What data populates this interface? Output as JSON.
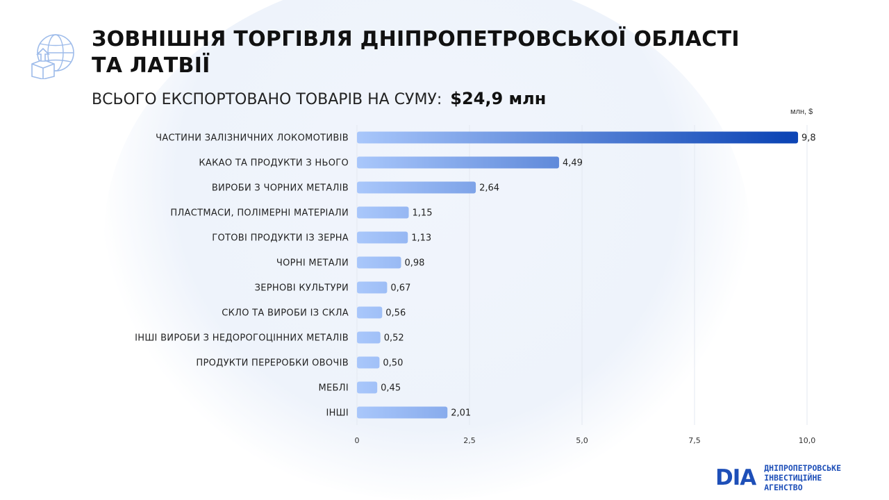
{
  "header": {
    "title": "ЗОВНІШНЯ ТОРГІВЛЯ ДНІПРОПЕТРОВСЬКОЇ ОБЛАСТІ ТА ЛАТВІЇ",
    "subtitle": "ВСЬОГО ЕКСПОРТОВАНО ТОВАРІВ НА СУМУ:",
    "total": "$24,9 млн",
    "icon": "globe-export-icon"
  },
  "colors": {
    "bar_light": "#a9c7fb",
    "bar_dark": "#0d45b5",
    "brand": "#1e4fb8",
    "grid": "#e3e8f0"
  },
  "chart_data": {
    "type": "bar",
    "orientation": "horizontal",
    "unit_label": "млн, $",
    "categories": [
      "ЧАСТИНИ ЗАЛІЗНИЧНИХ ЛОКОМОТИВІВ",
      "КАКАО ТА ПРОДУКТИ З НЬОГО",
      "ВИРОБИ З ЧОРНИХ МЕТАЛІВ",
      "ПЛАСТМАСИ, ПОЛІМЕРНІ МАТЕРІАЛИ",
      "ГОТОВІ ПРОДУКТИ ІЗ ЗЕРНА",
      "ЧОРНІ МЕТАЛИ",
      "ЗЕРНОВІ КУЛЬТУРИ",
      "СКЛО ТА ВИРОБИ ІЗ СКЛА",
      "ІНШІ ВИРОБИ З НЕДОРОГОЦІННИХ МЕТАЛІВ",
      "ПРОДУКТИ ПЕРЕРОБКИ ОВОЧІВ",
      "МЕБЛІ",
      "ІНШІ"
    ],
    "values": [
      9.8,
      4.49,
      2.64,
      1.15,
      1.13,
      0.98,
      0.67,
      0.56,
      0.52,
      0.5,
      0.45,
      2.01
    ],
    "value_labels": [
      "9,8",
      "4,49",
      "2,64",
      "1,15",
      "1,13",
      "0,98",
      "0,67",
      "0,56",
      "0,52",
      "0,50",
      "0,45",
      "2,01"
    ],
    "xlim": [
      0,
      10
    ],
    "xticks": [
      0,
      2.5,
      5,
      7.5,
      10
    ],
    "xtick_labels": [
      "0",
      "2,5",
      "5,0",
      "7,5",
      "10,0"
    ],
    "grid": true
  },
  "logo": {
    "mark": "DIA",
    "line1": "ДНІПРОПЕТРОВСЬКЕ",
    "line2": "ІНВЕСТИЦІЙНЕ АГЕНСТВО"
  }
}
